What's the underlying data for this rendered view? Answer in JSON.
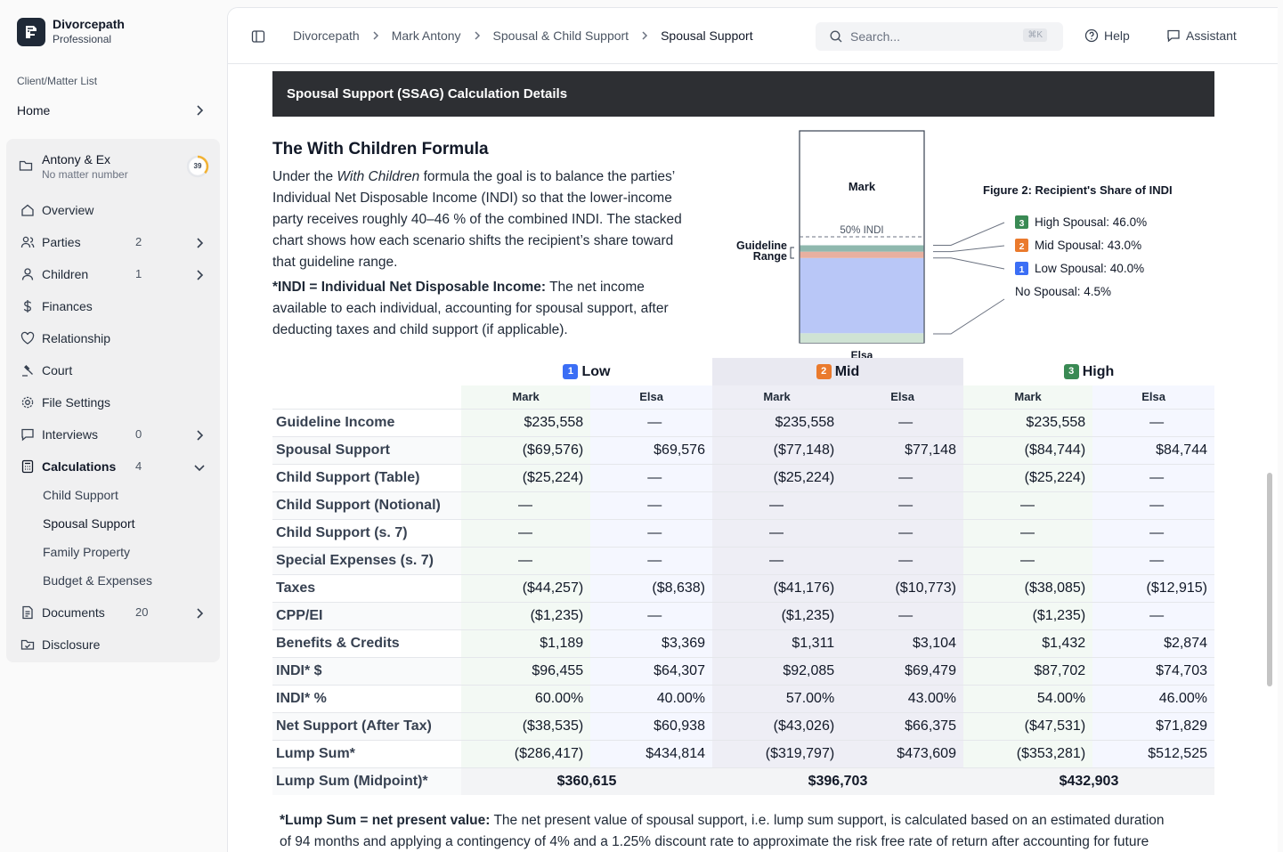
{
  "brand": {
    "name": "Divorcepath",
    "plan": "Professional"
  },
  "sidebar": {
    "section_label": "Client/Matter List",
    "home": "Home",
    "client": {
      "title": "Antony & Ex",
      "subtitle": "No matter number",
      "progress": "39"
    },
    "items": [
      {
        "label": "Overview",
        "count": ""
      },
      {
        "label": "Parties",
        "count": "2"
      },
      {
        "label": "Children",
        "count": "1"
      },
      {
        "label": "Finances",
        "count": ""
      },
      {
        "label": "Relationship",
        "count": ""
      },
      {
        "label": "Court",
        "count": ""
      },
      {
        "label": "File Settings",
        "count": ""
      },
      {
        "label": "Interviews",
        "count": "0"
      },
      {
        "label": "Calculations",
        "count": "4"
      },
      {
        "label": "Documents",
        "count": "20"
      },
      {
        "label": "Disclosure",
        "count": ""
      }
    ],
    "sub_items": [
      "Child Support",
      "Spousal Support",
      "Family Property",
      "Budget & Expenses"
    ]
  },
  "breadcrumbs": [
    "Divorcepath",
    "Mark Antony",
    "Spousal & Child Support",
    "Spousal Support"
  ],
  "search": {
    "placeholder": "Search...",
    "shortcut": "⌘K"
  },
  "toolbar": {
    "help": "Help",
    "assistant": "Assistant"
  },
  "section_header": "Spousal Support (SSAG) Calculation Details",
  "with_children": {
    "title": "The With Children Formula",
    "para1_a": "Under the ",
    "para1_em": "With Children",
    "para1_b": " formula the goal is to balance the parties’ Individual Net Disposable Income (INDI) so that the lower-income party receives roughly 40–46 % of the combined INDI. The stacked chart shows how each scenario shifts the recipient’s share toward that guideline range.",
    "para2_strong": "*INDI = Individual Net Disposable Income:",
    "para2_rest": " The net income available to each individual, accounting for spousal support, after deducting taxes and child support (if applicable)."
  },
  "figure": {
    "title": "Figure 2: Recipient's Share of INDI",
    "top_label": "Mark",
    "bottom_label": "Elsa",
    "midline_label": "50% INDI",
    "range_label_1": "Guideline",
    "range_label_2": "Range",
    "colors": {
      "high": "#8fb8ae",
      "mid": "#e8b0a0",
      "low": "#b9c7f7",
      "none": "#cfe3d4"
    },
    "legend": [
      {
        "badge": "3",
        "label": "High Spousal: 46.0%"
      },
      {
        "badge": "2",
        "label": "Mid Spousal: 43.0%"
      },
      {
        "badge": "1",
        "label": "Low Spousal: 40.0%"
      },
      {
        "badge": "",
        "label": "No Spousal: 4.5%"
      }
    ]
  },
  "chart_data": {
    "type": "bar",
    "title": "Figure 2: Recipient's Share of INDI",
    "categories": [
      "No Spousal",
      "Low Spousal",
      "Mid Spousal",
      "High Spousal"
    ],
    "values": [
      4.5,
      40.0,
      43.0,
      46.0
    ],
    "ylim": [
      0,
      100
    ]
  },
  "table": {
    "scenarios": [
      {
        "badge": "1",
        "name": "Low"
      },
      {
        "badge": "2",
        "name": "Mid"
      },
      {
        "badge": "3",
        "name": "High"
      }
    ],
    "party_a": "Mark",
    "party_b": "Elsa",
    "rows": [
      {
        "label": "Guideline Income",
        "values": [
          "$235,558",
          "—",
          "$235,558",
          "—",
          "$235,558",
          "—"
        ]
      },
      {
        "label": "Spousal Support",
        "values": [
          "($69,576)",
          "$69,576",
          "($77,148)",
          "$77,148",
          "($84,744)",
          "$84,744"
        ]
      },
      {
        "label": "Child Support (Table)",
        "values": [
          "($25,224)",
          "—",
          "($25,224)",
          "—",
          "($25,224)",
          "—"
        ]
      },
      {
        "label": "Child Support (Notional)",
        "values": [
          "—",
          "—",
          "—",
          "—",
          "—",
          "—"
        ]
      },
      {
        "label": "Child Support (s. 7)",
        "values": [
          "—",
          "—",
          "—",
          "—",
          "—",
          "—"
        ]
      },
      {
        "label": "Special Expenses (s. 7)",
        "values": [
          "—",
          "—",
          "—",
          "—",
          "—",
          "—"
        ]
      },
      {
        "label": "Taxes",
        "values": [
          "($44,257)",
          "($8,638)",
          "($41,176)",
          "($10,773)",
          "($38,085)",
          "($12,915)"
        ]
      },
      {
        "label": "CPP/EI",
        "values": [
          "($1,235)",
          "—",
          "($1,235)",
          "—",
          "($1,235)",
          "—"
        ]
      },
      {
        "label": "Benefits & Credits",
        "values": [
          "$1,189",
          "$3,369",
          "$1,311",
          "$3,104",
          "$1,432",
          "$2,874"
        ]
      },
      {
        "label": "INDI* $",
        "values": [
          "$96,455",
          "$64,307",
          "$92,085",
          "$69,479",
          "$87,702",
          "$74,703"
        ]
      },
      {
        "label": "INDI* %",
        "values": [
          "60.00%",
          "40.00%",
          "57.00%",
          "43.00%",
          "54.00%",
          "46.00%"
        ]
      },
      {
        "label": "Net Support (After Tax)",
        "values": [
          "($38,535)",
          "$60,938",
          "($43,026)",
          "$66,375",
          "($47,531)",
          "$71,829"
        ]
      },
      {
        "label": "Lump Sum*",
        "values": [
          "($286,417)",
          "$434,814",
          "($319,797)",
          "$473,609",
          "($353,281)",
          "$512,525"
        ]
      }
    ],
    "lump_midpoint": {
      "label": "Lump Sum (Midpoint)*",
      "values": [
        "$360,615",
        "$396,703",
        "$432,903"
      ]
    }
  },
  "footnote": {
    "strong": "*Lump Sum = net present value:",
    "rest": " The net present value of spousal support, i.e. lump sum support, is calculated based on an estimated duration of 94 months and applying a contingency of 4% and a 1.25% discount rate to approximate the risk free rate of return after accounting for future inflation. This lump sum calculation assumes the lump sum payment is non-deductible and non-taxable to the"
  }
}
